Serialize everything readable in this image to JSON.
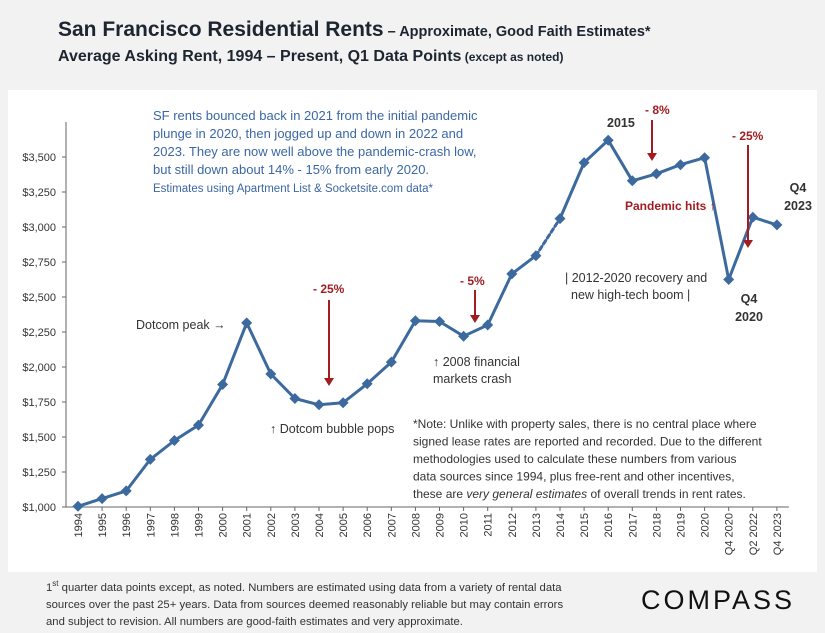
{
  "title": {
    "main": "San Francisco Residential Rents",
    "main_suffix": " – Approximate, Good Faith Estimates*",
    "line2": "Average Asking Rent, 1994 – Present, Q1 Data Points",
    "line2_note": " (except as noted)"
  },
  "chart_data": {
    "type": "line",
    "title": "San Francisco Residential Rents – Approximate, Good Faith Estimates*",
    "subtitle": "Average Asking Rent, 1994 – Present, Q1 Data Points (except as noted)",
    "xlabel": "",
    "ylabel": "",
    "ylim": [
      1000,
      3750
    ],
    "yticks": [
      1000,
      1250,
      1500,
      1750,
      2000,
      2250,
      2500,
      2750,
      3000,
      3250,
      3500
    ],
    "ytick_labels": [
      "$1,000",
      "$1,250",
      "$1,500",
      "$1,750",
      "$2,000",
      "$2,250",
      "$2,500",
      "$2,750",
      "$3,000",
      "$3,250",
      "$3,500"
    ],
    "grid": false,
    "line_color": "#3d6a9e",
    "categories": [
      "1994",
      "1995",
      "1996",
      "1997",
      "1998",
      "1999",
      "2000",
      "2001",
      "2002",
      "2003",
      "2004",
      "2005",
      "2006",
      "2007",
      "2008",
      "2009",
      "2010",
      "2011",
      "2012",
      "2013",
      "2014",
      "2015",
      "2016",
      "2017",
      "2018",
      "2019",
      "2020",
      "Q4 2020",
      "Q2 2022",
      "Q4 2023"
    ],
    "values": [
      1005,
      1060,
      1115,
      1340,
      1475,
      1585,
      1875,
      2315,
      1950,
      1775,
      1730,
      1745,
      1880,
      2035,
      2330,
      2325,
      2220,
      2300,
      2665,
      2795,
      3060,
      3460,
      3620,
      3330,
      3380,
      3445,
      3495,
      2625,
      3070,
      3015
    ],
    "dashed_segments": [
      [
        19,
        20
      ]
    ],
    "annotations": [
      {
        "text": "Dotcom peak →",
        "color": "#333333"
      },
      {
        "text": "- 25%",
        "color": "#a11d21"
      },
      {
        "text": "↑ Dotcom bubble pops",
        "color": "#333333"
      },
      {
        "text": "- 5%",
        "color": "#a11d21"
      },
      {
        "text": "↑ 2008 financial",
        "color": "#333333"
      },
      {
        "text": "markets crash",
        "color": "#333333"
      },
      {
        "text": "| 2012-2020 recovery and",
        "color": "#333333"
      },
      {
        "text": "new high-tech boom |",
        "color": "#333333"
      },
      {
        "text": "2015",
        "color": "#333333"
      },
      {
        "text": "- 8%",
        "color": "#a11d21"
      },
      {
        "text": "Pandemic hits ↑",
        "color": "#a11d21"
      },
      {
        "text": "- 25%",
        "color": "#a11d21"
      },
      {
        "text": "Q4",
        "color": "#333333"
      },
      {
        "text": "2020",
        "color": "#333333"
      },
      {
        "text": "Q4",
        "color": "#333333"
      },
      {
        "text": "2023",
        "color": "#333333"
      }
    ],
    "callout": {
      "lines": [
        "SF rents bounced back in 2021 from the initial pandemic",
        "plunge in 2020, then jogged up and down in 2022 and",
        "2023. They are now well above the pandemic-crash low,",
        "but still down about 14% - 15% from early 2020."
      ],
      "source": "Estimates using Apartment List & Socketsite.com data*",
      "color": "#3b67a4"
    },
    "note": {
      "lines": [
        "*Note: Unlike with property sales, there is no central place where",
        "signed lease rates are reported and recorded. Due to the different",
        "methodologies used to calculate these numbers from various",
        "data sources since 1994, plus free-rent and other incentives,"
      ],
      "last_prefix": "these are ",
      "last_emph": "very general estimates",
      "last_suffix": " of overall trends in rent rates."
    }
  },
  "footer": {
    "sup": "st",
    "line1_start": "1",
    "line1_rest": " quarter data points except, as noted. Numbers are estimated using data from a variety of rental data",
    "line2": "sources over the past 25+ years. Data from sources deemed reasonably reliable but may contain errors",
    "line3": "and subject to revision. All numbers are good-faith estimates and very approximate."
  },
  "logo": "COMPASS"
}
